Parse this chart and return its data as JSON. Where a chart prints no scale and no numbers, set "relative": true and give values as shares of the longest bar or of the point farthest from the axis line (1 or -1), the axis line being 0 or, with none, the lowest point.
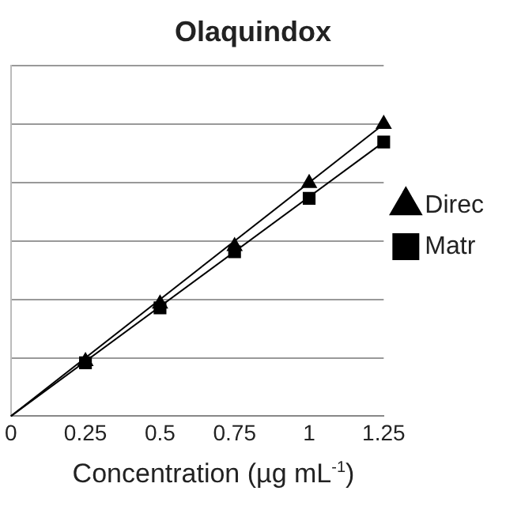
{
  "chart_data": {
    "type": "scatter",
    "title": "Olaquindox",
    "xlabel": "Concentration (µg mL$^{-1}$)",
    "relative": true,
    "xlim": [
      0,
      1.25
    ],
    "xticks": [
      0,
      0.25,
      0.5,
      0.75,
      1,
      1.25
    ],
    "grid": "y",
    "legend": "right",
    "series": [
      {
        "name": "Direc",
        "color": "#000000",
        "marker": "triangle",
        "x": [
          0.25,
          0.5,
          0.75,
          1,
          1.25
        ],
        "values": [
          0.188,
          0.385,
          0.582,
          0.798,
          1
        ]
      },
      {
        "name": "Matr",
        "color": "#000000",
        "marker": "square",
        "x": [
          0.25,
          0.5,
          0.75,
          1,
          1.25
        ],
        "values": [
          0.183,
          0.371,
          0.563,
          0.746,
          0.939
        ]
      },
      {
        "type": "line",
        "color": "#000000",
        "marker": "none",
        "x": [
          0,
          1.25
        ],
        "values": [
          0,
          1
        ]
      },
      {
        "type": "line",
        "color": "#000000",
        "marker": "none",
        "x": [
          0,
          1.25
        ],
        "values": [
          0,
          0.939
        ]
      }
    ]
  }
}
